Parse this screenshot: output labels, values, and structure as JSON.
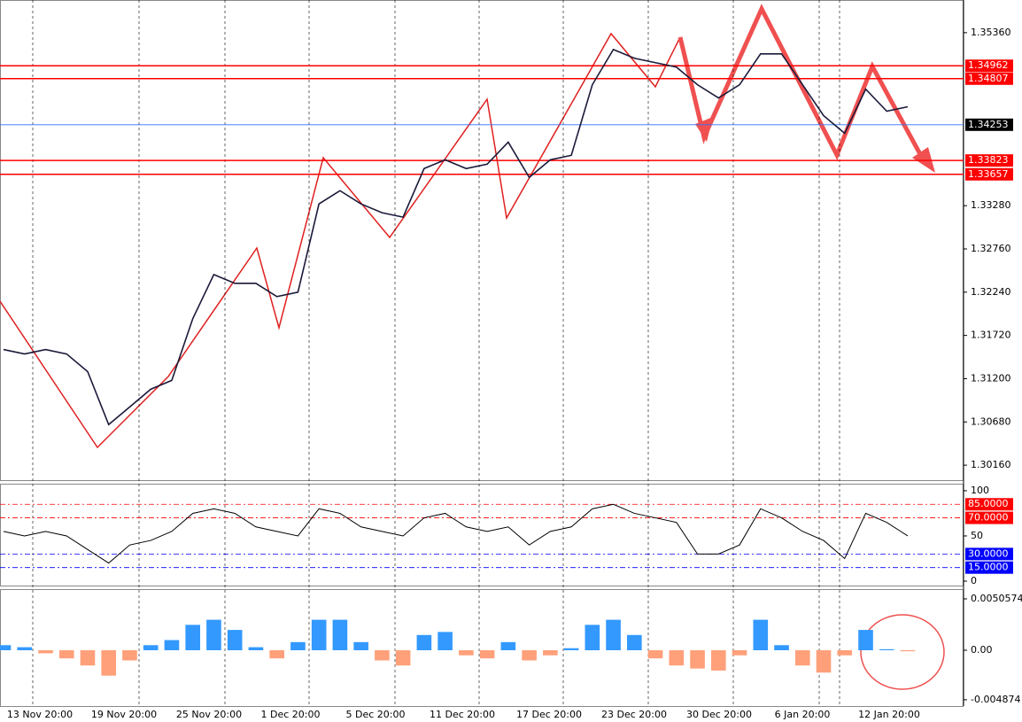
{
  "time_axis": [
    "13 Nov 20:00",
    "19 Nov 20:00",
    "25 Nov 20:00",
    "1 Dec 20:00",
    "5 Dec 20:00",
    "11 Dec 20:00",
    "17 Dec 20:00",
    "23 Dec 20:00",
    "30 Dec 20:00",
    "6 Jan 20:00",
    "12 Jan 20:00"
  ],
  "chart_data": [
    {
      "type": "line",
      "color": "#1a1a3a",
      "values": [
        1.3155,
        1.31497,
        1.3155,
        1.31497,
        1.31285,
        1.30648,
        1.3086,
        1.31073,
        1.31179,
        1.31922,
        1.32452,
        1.32346,
        1.32346,
        1.32187,
        1.3224,
        1.33301,
        1.3346,
        1.33301,
        1.33195,
        1.33142,
        1.33726,
        1.33832,
        1.33726,
        1.33779,
        1.34044,
        1.3362,
        1.33832,
        1.33885,
        1.34734,
        1.35158,
        1.35052,
        1.34999,
        1.34946,
        1.34734,
        1.34575,
        1.34734,
        1.35105,
        1.35105,
        1.34734,
        1.34362,
        1.3415,
        1.34681,
        1.34416,
        1.34469
      ],
      "ylim": [
        1.2998,
        1.35742
      ],
      "yticks": [
        {
          "value": 1.3536,
          "label": "1.35360"
        },
        {
          "value": 1.3328,
          "label": "1.33280"
        },
        {
          "value": 1.3276,
          "label": "1.32760"
        },
        {
          "value": 1.3224,
          "label": "1.32240"
        },
        {
          "value": 1.3172,
          "label": "1.31720"
        },
        {
          "value": 1.312,
          "label": "1.31200"
        },
        {
          "value": 1.3068,
          "label": "1.30680"
        },
        {
          "value": 1.3016,
          "label": "1.30160"
        }
      ],
      "levels": [
        {
          "value": 1.34962,
          "color": "#ff0000"
        },
        {
          "value": 1.34807,
          "color": "#ff0000"
        },
        {
          "value": 1.34253,
          "color": "#000000"
        },
        {
          "value": 1.33823,
          "color": "#ff0000"
        },
        {
          "value": 1.33657,
          "color": "#ff0000"
        }
      ]
    },
    {
      "type": "line",
      "color": "#000000",
      "values": [
        55,
        50,
        55,
        50,
        35,
        20,
        40,
        45,
        55,
        75,
        80,
        75,
        60,
        55,
        50,
        80,
        75,
        60,
        55,
        50,
        70,
        75,
        60,
        55,
        60,
        40,
        55,
        60,
        80,
        85,
        75,
        70,
        65,
        30,
        30,
        40,
        80,
        70,
        55,
        45,
        25,
        75,
        65,
        50
      ],
      "ylim": [
        -4.9,
        106.8
      ],
      "yticks": [
        100,
        50,
        0
      ],
      "levels": [
        {
          "value": 85,
          "label": "85.0000",
          "color": "#ff0000"
        },
        {
          "value": 70,
          "label": "70.0000",
          "color": "#ff0000"
        },
        {
          "value": 30,
          "label": "30.0000",
          "color": "#0000ff"
        },
        {
          "value": 15,
          "label": "15.0000",
          "color": "#0000ff"
        }
      ]
    },
    {
      "type": "bar",
      "colors": {
        "up": "#3399ff",
        "down": "#ffa07a"
      },
      "values": [
        0.0005,
        0.0003,
        -0.0003,
        -0.0008,
        -0.0015,
        -0.0025,
        -0.001,
        0.0005,
        0.001,
        0.0025,
        0.003,
        0.002,
        0.0003,
        -0.0008,
        0.0008,
        0.003,
        0.003,
        0.0008,
        -0.001,
        -0.0015,
        0.0015,
        0.0018,
        -0.0005,
        -0.0008,
        0.0008,
        -0.001,
        -0.0005,
        0.0002,
        0.0025,
        0.003,
        0.0015,
        -0.0008,
        -0.0015,
        -0.0018,
        -0.002,
        -0.0005,
        0.003,
        0.0005,
        -0.0015,
        -0.0022,
        -0.0005,
        0.002,
        0.0001,
        -0.0001
      ],
      "ylim": [
        -0.005493,
        0.005929
      ],
      "yticks": [
        0.0050574,
        {
          "value": 0,
          "label": "0.00"
        },
        -0.004874
      ]
    }
  ]
}
